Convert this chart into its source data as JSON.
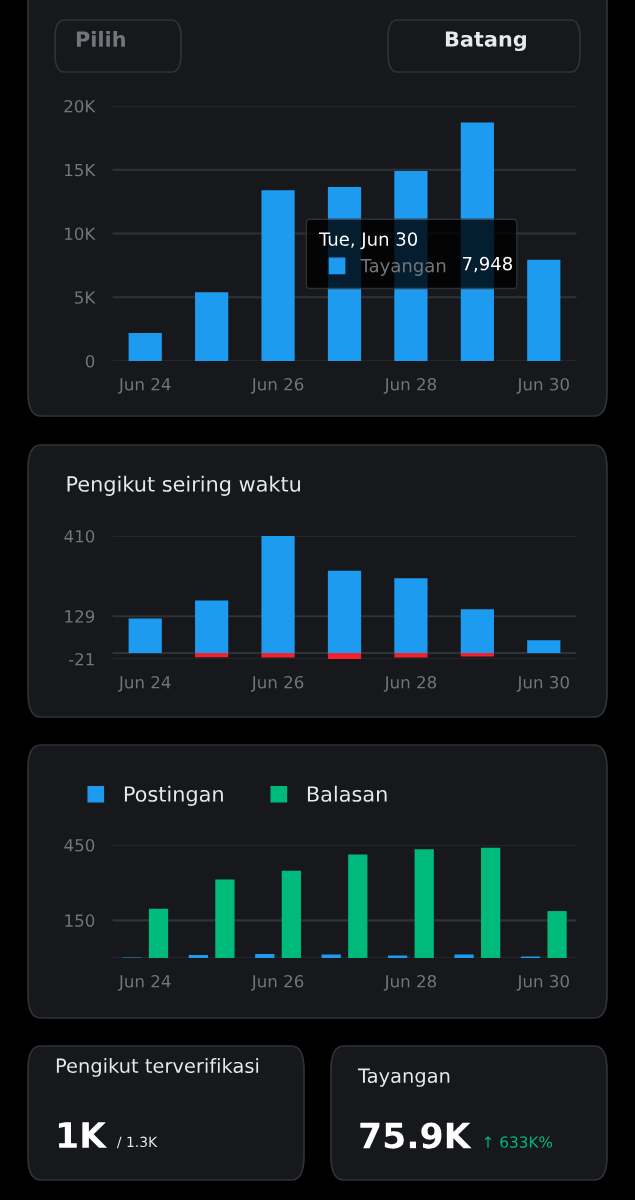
{
  "chart_data": [
    {
      "type": "bar",
      "categories": [
        "Jun 24",
        null,
        "Jun 26",
        null,
        "Jun 28",
        null,
        "Jun 30"
      ],
      "series": [
        {
          "name": "Tayangan",
          "color": "#1d9bf0",
          "values": [
            2200,
            5400,
            13400,
            13650,
            14900,
            18700,
            7948
          ]
        }
      ],
      "ylim": [
        0,
        20000
      ],
      "yticks": [
        {
          "value": 0,
          "label": "0"
        },
        {
          "value": 5000,
          "label": "5K"
        },
        {
          "value": 10000,
          "label": "10K"
        },
        {
          "value": 15000,
          "label": "15K"
        },
        {
          "value": 20000,
          "label": "20K"
        }
      ],
      "grid": "y",
      "legend": "center right",
      "legend_title": "Tue, Jun 30",
      "annotations": [
        "Pilih",
        "Batang",
        {
          "text": "7,948",
          "x": "Jun 30",
          "y": 7948
        }
      ]
    },
    {
      "type": "bar",
      "title": "Pengikut seiring waktu",
      "stacked": true,
      "categories": [
        "Jun 24",
        null,
        "Jun 26",
        null,
        "Jun 28",
        null,
        "Jun 30"
      ],
      "series": [
        {
          "color": "#1d9bf0",
          "values": [
            121,
            184,
            410,
            288,
            262,
            153,
            45
          ]
        },
        {
          "color": "#f4212e",
          "values": [
            null,
            -15,
            -16,
            -21,
            -16,
            -12,
            null
          ]
        }
      ],
      "ylim": [
        -21,
        410
      ],
      "yticks": [
        -21,
        {
          "value": 0,
          "label": null
        },
        129,
        410
      ],
      "grid": "y"
    },
    {
      "type": "bar",
      "categories": [
        "Jun 24",
        null,
        "Jun 26",
        null,
        "Jun 28",
        null,
        "Jun 30"
      ],
      "series": [
        {
          "name": "Postingan",
          "color": "#1d9bf0",
          "values": [
            2,
            12,
            16,
            14,
            10,
            14,
            6
          ]
        },
        {
          "name": "Balasan",
          "color": "#00ba7c",
          "values": [
            196,
            313,
            347,
            412,
            433,
            439,
            187
          ]
        }
      ],
      "ylim": [
        0,
        450
      ],
      "yticks": [
        {
          "value": 0,
          "label": null
        },
        150,
        450
      ],
      "grid": "y",
      "legend": "top left"
    },
    {
      "type": "other",
      "title": "Pengikut terverifikasi",
      "annotations": [
        "1K",
        "/ 1.3K"
      ]
    },
    {
      "type": "other",
      "title": "Tayangan",
      "annotations": [
        "75.9K",
        "↑ 633K%"
      ]
    }
  ]
}
